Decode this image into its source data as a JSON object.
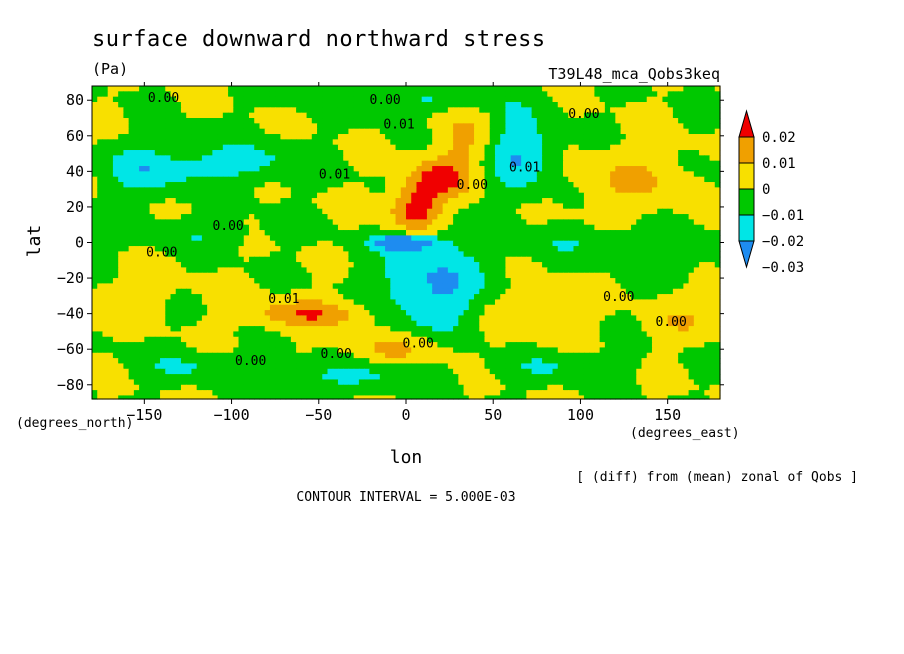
{
  "chart_data": {
    "type": "heatmap",
    "title": "surface downward northward stress",
    "units": "(Pa)",
    "run_label": "T39L48_mca_Qobs3keq",
    "xlabel": "lon",
    "ylabel": "lat",
    "x_unit_label": "(degrees_east)",
    "y_unit_label": "(degrees_north)",
    "xlim": [
      -180,
      180
    ],
    "ylim": [
      -88,
      88
    ],
    "xticks": [
      -150,
      -100,
      -50,
      0,
      50,
      100,
      150
    ],
    "xtick_labels": [
      "−150",
      "−100",
      "−50",
      "0",
      "50",
      "100",
      "150"
    ],
    "yticks": [
      80,
      60,
      40,
      20,
      0,
      -20,
      -40,
      -60,
      -80
    ],
    "ytick_labels": [
      "80",
      "60",
      "40",
      "20",
      "0",
      "−20",
      "−40",
      "−60",
      "−80"
    ],
    "colorbar": {
      "levels": [
        "0.02",
        "0.01",
        "0",
        "−0.01",
        "−0.02",
        "−0.03"
      ],
      "colors": [
        "#f00000",
        "#f0a000",
        "#f8e000",
        "#00c800",
        "#00e6e6",
        "#1e8cf0"
      ]
    },
    "contour_labels": [
      {
        "text": "0.00",
        "lon": -139,
        "lat": 79
      },
      {
        "text": "0.00",
        "lon": -12,
        "lat": 78
      },
      {
        "text": "0.00",
        "lon": 102,
        "lat": 70
      },
      {
        "text": "0.01",
        "lon": -4,
        "lat": 64
      },
      {
        "text": "0.01",
        "lon": -41,
        "lat": 36
      },
      {
        "text": "0.00",
        "lon": -102,
        "lat": 7
      },
      {
        "text": "0.01",
        "lon": 68,
        "lat": 40
      },
      {
        "text": "0.00",
        "lon": 38,
        "lat": 30
      },
      {
        "text": "0.00",
        "lon": -140,
        "lat": -8
      },
      {
        "text": "0.01",
        "lon": -70,
        "lat": -34
      },
      {
        "text": "0.00",
        "lon": 7,
        "lat": -59
      },
      {
        "text": "0.00",
        "lon": 122,
        "lat": -33
      },
      {
        "text": "0.00",
        "lon": 152,
        "lat": -47
      },
      {
        "text": "0.00",
        "lon": -89,
        "lat": -69
      },
      {
        "text": "0.00",
        "lon": -40,
        "lat": -65
      }
    ],
    "field_features": [
      {
        "lon": 5,
        "lat": 18,
        "sx": 10,
        "sy": 9,
        "value": 0.026
      },
      {
        "lon": 18,
        "lat": 35,
        "sx": 12,
        "sy": 8,
        "value": 0.022
      },
      {
        "lon": 35,
        "lat": 55,
        "sx": 12,
        "sy": 14,
        "value": 0.012
      },
      {
        "lon": 0,
        "lat": 0,
        "sx": 14,
        "sy": 3,
        "value": -0.03
      },
      {
        "lon": 15,
        "lat": -25,
        "sx": 22,
        "sy": 18,
        "value": -0.022
      },
      {
        "lon": 65,
        "lat": 50,
        "sx": 14,
        "sy": 16,
        "value": -0.02
      },
      {
        "lon": -95,
        "lat": 45,
        "sx": 25,
        "sy": 8,
        "value": -0.015
      },
      {
        "lon": -150,
        "lat": 40,
        "sx": 18,
        "sy": 10,
        "value": -0.016
      },
      {
        "lon": -55,
        "lat": -40,
        "sx": 25,
        "sy": 6,
        "value": 0.018
      },
      {
        "lon": -5,
        "lat": -60,
        "sx": 22,
        "sy": 7,
        "value": 0.012
      },
      {
        "lon": 70,
        "lat": -40,
        "sx": 18,
        "sy": 10,
        "value": 0.01
      },
      {
        "lon": 130,
        "lat": 35,
        "sx": 25,
        "sy": 12,
        "value": 0.01
      },
      {
        "lon": 160,
        "lat": -45,
        "sx": 15,
        "sy": 8,
        "value": 0.008
      },
      {
        "lon": -30,
        "lat": -75,
        "sx": 30,
        "sy": 6,
        "value": -0.012
      },
      {
        "lon": -120,
        "lat": -70,
        "sx": 25,
        "sy": 6,
        "value": -0.01
      },
      {
        "lon": 90,
        "lat": -70,
        "sx": 25,
        "sy": 6,
        "value": -0.01
      },
      {
        "lon": 0,
        "lat": 80,
        "sx": 40,
        "sy": 5,
        "value": -0.01
      },
      {
        "lon": 100,
        "lat": 0,
        "sx": 30,
        "sy": 6,
        "value": -0.008
      },
      {
        "lon": -120,
        "lat": 5,
        "sx": 25,
        "sy": 6,
        "value": -0.008
      },
      {
        "lon": -160,
        "lat": -30,
        "sx": 20,
        "sy": 8,
        "value": 0.006
      },
      {
        "lon": 150,
        "lat": -10,
        "sx": 20,
        "sy": 8,
        "value": -0.006
      }
    ]
  },
  "footer": {
    "diff_note": "[ (diff) from (mean) zonal of Qobs ]",
    "contour_interval": "CONTOUR INTERVAL = 5.000E-03"
  }
}
